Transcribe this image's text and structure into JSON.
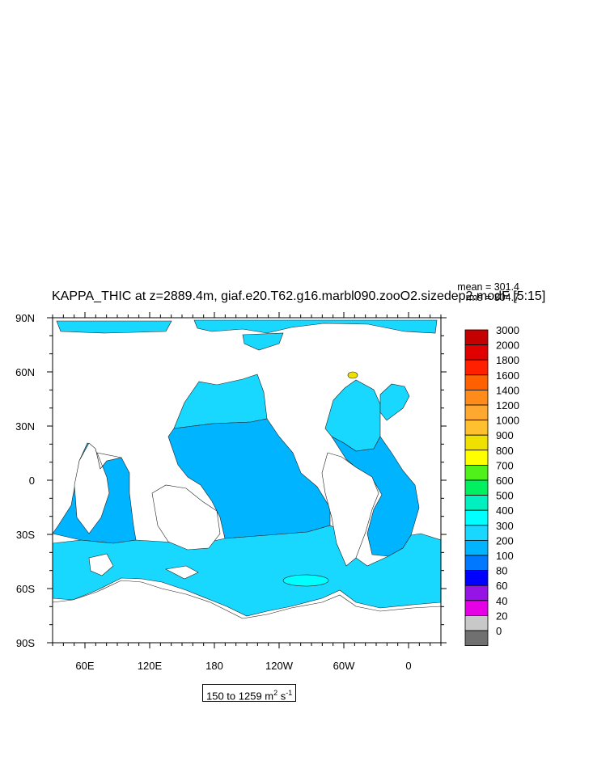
{
  "title": "KAPPA_THIC at z=2889.4m, giaf.e20.T62.g16.marbl090.zooO2.sizedep2.modF [5:15]",
  "stats": {
    "mean": "mean = 301.4",
    "rms": "rms = 304.7"
  },
  "range_label": {
    "text": "150 to 1259 m",
    "sup1": "2",
    "mid": " s",
    "sup2": "-1"
  },
  "chart_data": {
    "type": "heatmap",
    "title": "KAPPA_THIC at z=2889.4m, giaf.e20.T62.g16.marbl090.zooO2.sizedep2.modF [5:15]",
    "projection": "cylindrical equidistant, longitude centered at 180",
    "xlim": [
      30,
      390
    ],
    "ylim": [
      -90,
      90
    ],
    "x_ticks": [
      "60E",
      "120E",
      "180",
      "120W",
      "60W",
      "0"
    ],
    "x_tick_values": [
      60,
      120,
      180,
      240,
      300,
      360
    ],
    "y_ticks": [
      "90N",
      "60N",
      "30N",
      "0",
      "30S",
      "60S",
      "90S"
    ],
    "y_tick_values": [
      90,
      60,
      30,
      0,
      -30,
      -60,
      -90
    ],
    "colorbar": {
      "levels": [
        "3000",
        "2000",
        "1800",
        "1600",
        "1400",
        "1200",
        "1000",
        "900",
        "800",
        "700",
        "600",
        "500",
        "400",
        "300",
        "200",
        "100",
        "80",
        "60",
        "40",
        "20",
        "0"
      ],
      "colors": [
        "#c40000",
        "#e00000",
        "#ff2000",
        "#ff6000",
        "#ff8c1a",
        "#ffa830",
        "#ffc030",
        "#f0e000",
        "#ffff00",
        "#50f01a",
        "#00f060",
        "#00f0c0",
        "#00ffff",
        "#18d8ff",
        "#00b4ff",
        "#0078ff",
        "#0000ff",
        "#9614e6",
        "#e600e6",
        "#c8c8c8",
        "#707070"
      ]
    },
    "dominant_values": "mostly 300-400 (light blue, cyan) with broad regions of 200-300; small 400-500 patches in the Southern Ocean; a small high-value (up to ~900) spot near Greenland",
    "mean": 301.4,
    "rms": 304.7,
    "data_range": [
      150,
      1259
    ],
    "units": "m2 s-1"
  }
}
